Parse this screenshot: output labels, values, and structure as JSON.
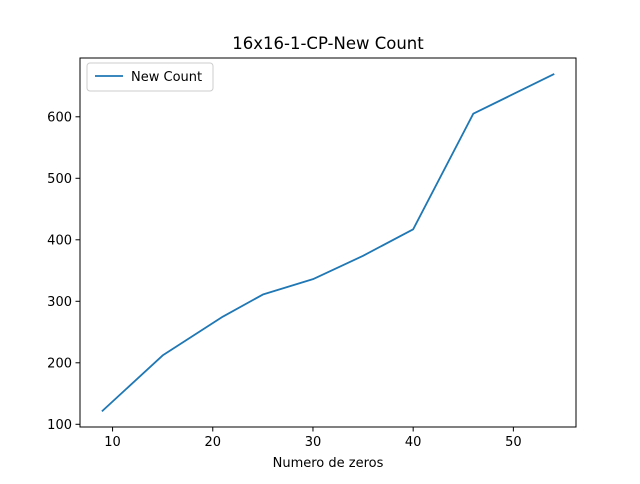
{
  "chart_data": {
    "type": "line",
    "title": "16x16-1-CP-New Count",
    "xlabel": "Numero de zeros",
    "ylabel": "",
    "xlim": [
      6.75,
      56.25
    ],
    "ylim": [
      95.6,
      695.6
    ],
    "xticks": [
      10,
      20,
      30,
      40,
      50
    ],
    "yticks": [
      100,
      200,
      300,
      400,
      500,
      600
    ],
    "grid": false,
    "legend_position": "top-left",
    "series": [
      {
        "name": "New Count",
        "color": "#1f77b4",
        "x": [
          9,
          15,
          21,
          25,
          30,
          35,
          40,
          46,
          54
        ],
        "y": [
          122,
          212,
          275,
          311,
          336,
          374,
          417,
          605,
          669
        ]
      }
    ]
  }
}
